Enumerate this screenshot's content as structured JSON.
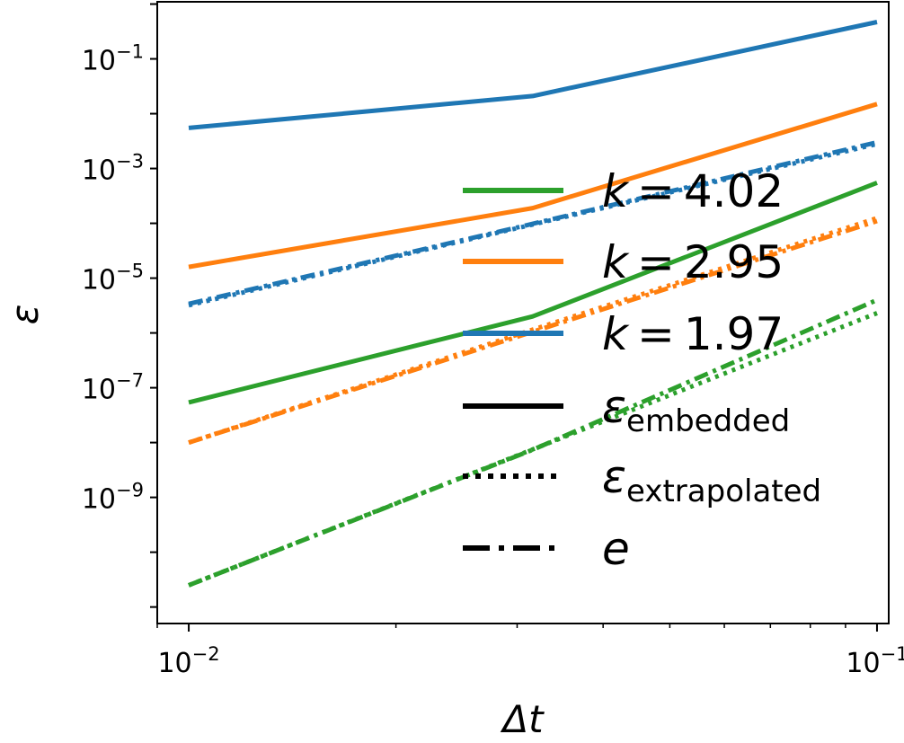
{
  "chart_data": {
    "type": "line",
    "x_scale": "log",
    "y_scale": "log",
    "xlabel": "Δt",
    "ylabel": "ε",
    "xlim": [
      0.009,
      0.104
    ],
    "ylim": [
      5e-12,
      1.1
    ],
    "x_ticks": [
      {
        "value": 0.01,
        "base": "10",
        "exp": "−2"
      },
      {
        "value": 0.1,
        "base": "10",
        "exp": "−1"
      }
    ],
    "y_ticks": [
      {
        "value": 0.1,
        "base": "10",
        "exp": "−1"
      },
      {
        "value": 0.001,
        "base": "10",
        "exp": "−3"
      },
      {
        "value": 1e-05,
        "base": "10",
        "exp": "−5"
      },
      {
        "value": 1e-07,
        "base": "10",
        "exp": "−7"
      },
      {
        "value": 1e-09,
        "base": "10",
        "exp": "−9"
      }
    ],
    "x": [
      0.01,
      0.0316,
      0.1
    ],
    "series": [
      {
        "group": "k = 1.97",
        "kind": "embedded",
        "color": "#1f77b4",
        "values": [
          0.0055,
          0.021,
          0.47
        ]
      },
      {
        "group": "k = 1.97",
        "kind": "extrapolated",
        "color": "#1f77b4",
        "values": [
          3.2e-06,
          9.5e-05,
          0.0028
        ]
      },
      {
        "group": "k = 1.97",
        "kind": "e",
        "color": "#1f77b4",
        "values": [
          3.4e-06,
          9.8e-05,
          0.003
        ]
      },
      {
        "group": "k = 2.95",
        "kind": "embedded",
        "color": "#ff7f0e",
        "values": [
          1.6e-05,
          0.00019,
          0.015
        ]
      },
      {
        "group": "k = 2.95",
        "kind": "extrapolated",
        "color": "#ff7f0e",
        "values": [
          1e-08,
          1.15e-06,
          0.000125
        ]
      },
      {
        "group": "k = 2.95",
        "kind": "e",
        "color": "#ff7f0e",
        "values": [
          1e-08,
          1.05e-06,
          0.00011
        ]
      },
      {
        "group": "k = 4.02",
        "kind": "embedded",
        "color": "#2ca02c",
        "values": [
          5.4e-08,
          2e-06,
          0.00055
        ]
      },
      {
        "group": "k = 4.02",
        "kind": "extrapolated",
        "color": "#2ca02c",
        "values": [
          2.5e-11,
          7.5e-09,
          2.3e-06
        ]
      },
      {
        "group": "k = 4.02",
        "kind": "e",
        "color": "#2ca02c",
        "values": [
          2.5e-11,
          7.4e-09,
          4e-06
        ]
      }
    ],
    "legend": {
      "position": "center-right",
      "entries": [
        {
          "label_prefix": "k",
          "label_value": " = 4.02",
          "color": "#2ca02c",
          "style": "solid"
        },
        {
          "label_prefix": "k",
          "label_value": " = 2.95",
          "color": "#ff7f0e",
          "style": "solid"
        },
        {
          "label_prefix": "k",
          "label_value": " = 1.97",
          "color": "#1f77b4",
          "style": "solid"
        },
        {
          "label_prefix": "ε",
          "label_value": "embedded",
          "color": "#000000",
          "style": "solid"
        },
        {
          "label_prefix": "ε",
          "label_value": "extrapolated",
          "color": "#000000",
          "style": "dotted"
        },
        {
          "label_prefix": "e",
          "label_value": "",
          "color": "#000000",
          "style": "dashdot"
        }
      ]
    },
    "grid": false
  }
}
